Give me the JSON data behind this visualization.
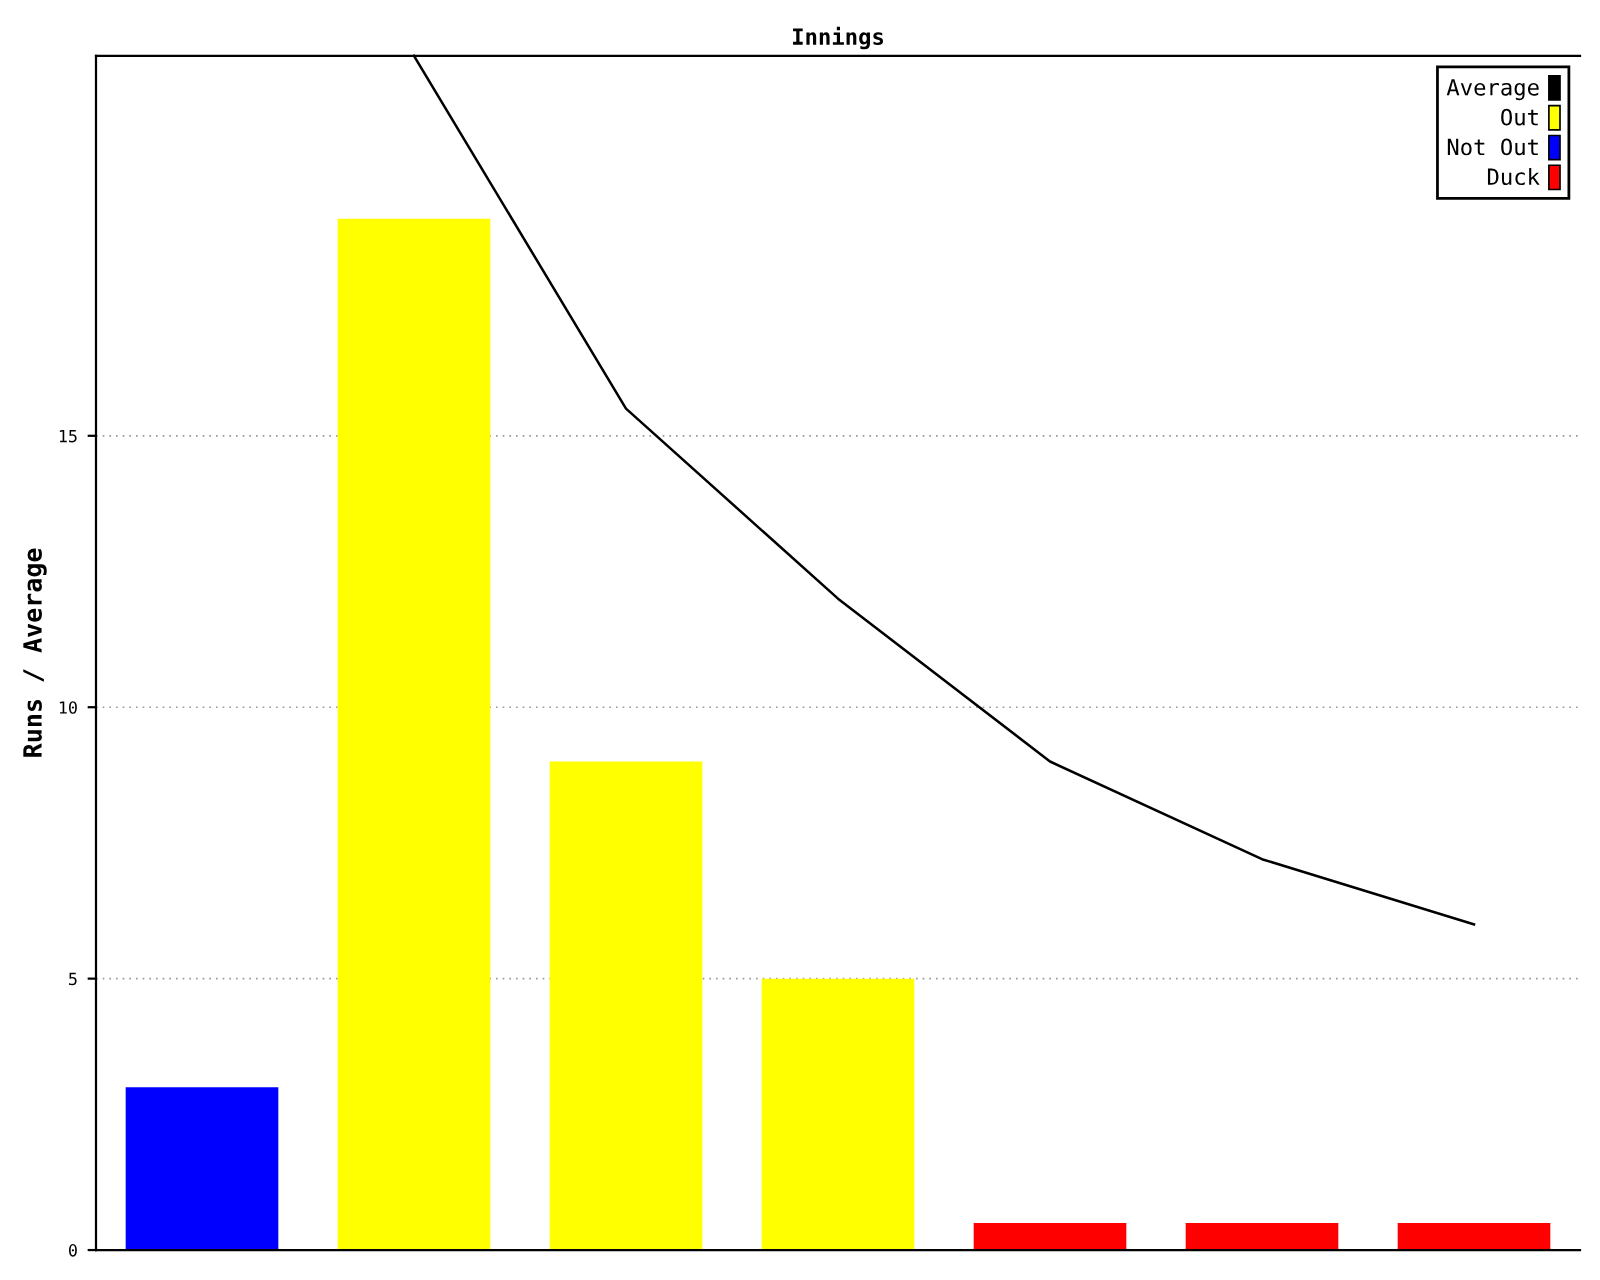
{
  "chart_data": {
    "type": "bar",
    "title": "Innings",
    "ylabel": "Runs / Average",
    "categories": [
      null,
      null,
      null,
      null,
      null,
      null,
      null
    ],
    "series": [
      {
        "name": "Average",
        "type": "line",
        "color": "#000000",
        "values": [
          null,
          22,
          15.5,
          12,
          9,
          7.2,
          6
        ]
      },
      {
        "name": "Out",
        "color": "#ffff00",
        "values": [
          null,
          19,
          9,
          5,
          null,
          null,
          null
        ]
      },
      {
        "name": "Not Out",
        "color": "#0000ff",
        "values": [
          3,
          null,
          null,
          null,
          null,
          null,
          null
        ]
      },
      {
        "name": "Duck",
        "color": "#ff0000",
        "values": [
          null,
          null,
          null,
          null,
          0.5,
          0.5,
          0.5
        ]
      }
    ],
    "ylim": [
      0,
      22
    ],
    "yticks": [
      0,
      5,
      10,
      15
    ],
    "grid": "y",
    "legend": "top right",
    "tick_labels": "y",
    "marker": "none",
    "line_style": "solid"
  }
}
